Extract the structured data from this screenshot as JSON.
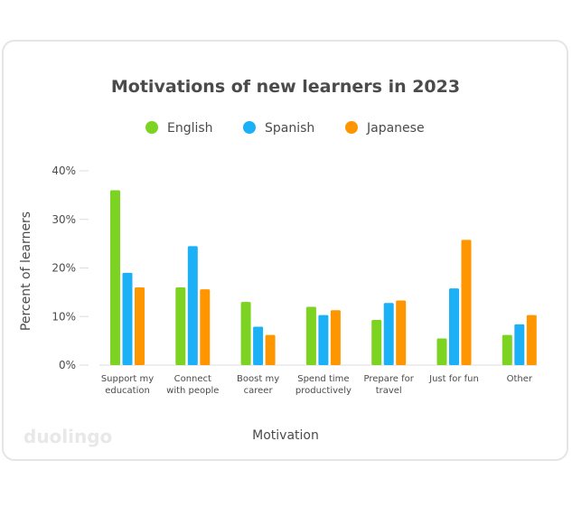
{
  "brand": "duolingo",
  "chart_data": {
    "type": "bar",
    "title": "Motivations of new learners in 2023",
    "xlabel": "Motivation",
    "ylabel": "Percent of learners",
    "ylim": [
      0,
      40
    ],
    "yticks": [
      "0%",
      "10%",
      "20%",
      "30%",
      "40%"
    ],
    "grid": false,
    "legend_position": "top",
    "categories": [
      [
        "Support my",
        "education"
      ],
      [
        "Connect",
        "with people"
      ],
      [
        "Boost my",
        "career"
      ],
      [
        "Spend time",
        "productively"
      ],
      [
        "Prepare for",
        "travel"
      ],
      [
        "Just for fun"
      ],
      [
        "Other"
      ]
    ],
    "series": [
      {
        "name": "English",
        "color": "#7dd321",
        "values": [
          36,
          16,
          13,
          12,
          9.3,
          5.5,
          6.2
        ]
      },
      {
        "name": "Spanish",
        "color": "#1cb0f6",
        "values": [
          19,
          24.5,
          7.9,
          10.3,
          12.8,
          15.8,
          8.4
        ]
      },
      {
        "name": "Japanese",
        "color": "#ff9600",
        "values": [
          16,
          15.6,
          6.2,
          11.3,
          13.3,
          25.8,
          10.3
        ]
      }
    ]
  }
}
